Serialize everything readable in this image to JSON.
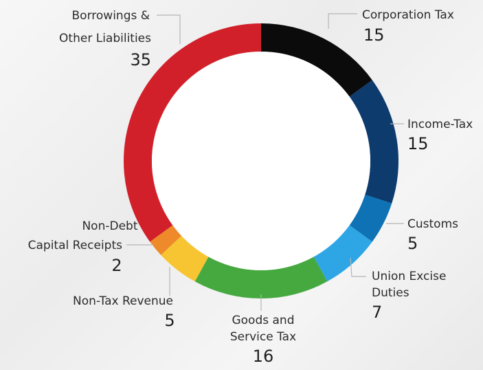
{
  "chart_data": {
    "type": "pie",
    "style": "donut",
    "categories": [
      "Corporation Tax",
      "Income-Tax",
      "Customs",
      "Union Excise Duties",
      "Goods and Service Tax",
      "Non-Tax Revenue",
      "Non-Debt Capital Receipts",
      "Borrowings & Other Liabilities"
    ],
    "values": [
      15,
      15,
      5,
      7,
      16,
      5,
      2,
      35
    ],
    "colors": [
      "#0b0b0b",
      "#0d3b6e",
      "#0e72b5",
      "#2ea6e6",
      "#46a940",
      "#f7c531",
      "#ee8a2a",
      "#d2202a"
    ],
    "labels": {
      "corporation": [
        "Corporation Tax"
      ],
      "income": [
        "Income-Tax"
      ],
      "customs": [
        "Customs"
      ],
      "excise": [
        "Union Excise",
        "Duties"
      ],
      "gst": [
        "Goods and",
        "Service Tax"
      ],
      "nontax": [
        "Non-Tax Revenue"
      ],
      "nondebt": [
        "Non-Debt",
        "Capital Receipts"
      ],
      "borrow": [
        "Borrowings &",
        "Other Liabilities"
      ]
    },
    "value_labels": {
      "corporation": "15",
      "income": "15",
      "customs": "5",
      "excise": "7",
      "gst": "16",
      "nontax": "5",
      "nondebt": "2",
      "borrow": "35"
    }
  }
}
